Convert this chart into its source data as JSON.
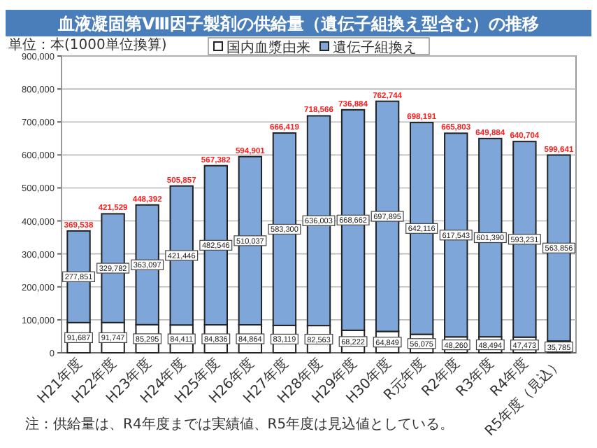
{
  "chart_data": {
    "type": "bar",
    "title": "血液凝固第Ⅷ因子製剤の供給量（遺伝子組換え型含む）の推移",
    "ylabel": "単位：本(1000単位換算)",
    "categories": [
      "H21年度",
      "H22年度",
      "H23年度",
      "H24年度",
      "H25年度",
      "H26年度",
      "H27年度",
      "H28年度",
      "H29年度",
      "H30年度",
      "R元年度",
      "R2年度",
      "R3年度",
      "R4年度",
      "R5年度（見込）"
    ],
    "stacked": true,
    "series": [
      {
        "name": "国内血漿由来",
        "color": "#ffffff",
        "values": [
          91687,
          91747,
          85295,
          84411,
          84836,
          84864,
          83119,
          82563,
          68222,
          64849,
          56075,
          48260,
          48494,
          47473,
          35785
        ],
        "value_labels": [
          "91,687",
          "91,747",
          "85,295",
          "84,411",
          "84,836",
          "84,864",
          "83,119",
          "82,563",
          "68,222",
          "64,849",
          "56,075",
          "48,260",
          "48,494",
          "47,473",
          "35,785"
        ]
      },
      {
        "name": "遺伝子組換え",
        "color": "#7fa6d9",
        "values": [
          277851,
          329782,
          363097,
          421446,
          482546,
          510037,
          583300,
          636003,
          668662,
          697895,
          642116,
          617543,
          601390,
          593231,
          563856
        ],
        "value_labels": [
          "277,851",
          "329,782",
          "363,097",
          "421,446",
          "482,546",
          "510,037",
          "583,300",
          "636,003",
          "668,662",
          "697,895",
          "642,116",
          "617,543",
          "601,390",
          "593,231",
          "563,856"
        ]
      }
    ],
    "totals": [
      "369,538",
      "421,529",
      "448,392",
      "505,857",
      "567,382",
      "594,901",
      "666,419",
      "718,566",
      "736,884",
      "762,744",
      "698,191",
      "665,803",
      "649,884",
      "640,704",
      "599,641"
    ],
    "ylim": [
      0,
      900000
    ],
    "yticks": [
      0,
      {
        "value": 100000,
        "label": "100,000"
      },
      {
        "value": 200000,
        "label": "200,000"
      },
      {
        "value": 300000,
        "label": "300,000"
      },
      {
        "value": 400000,
        "label": "400,000"
      },
      {
        "value": 500000,
        "label": "500,000"
      },
      {
        "value": 600000,
        "label": "600,000"
      },
      {
        "value": 700000,
        "label": "700,000"
      },
      {
        "value": 800000,
        "label": "800,000"
      },
      {
        "value": 900000,
        "label": "900,000"
      }
    ],
    "grid": "y",
    "legend": "top",
    "annotations": [
      "注：供給量は、R4年度までは実績値、R5年度は見込値としている。"
    ]
  }
}
